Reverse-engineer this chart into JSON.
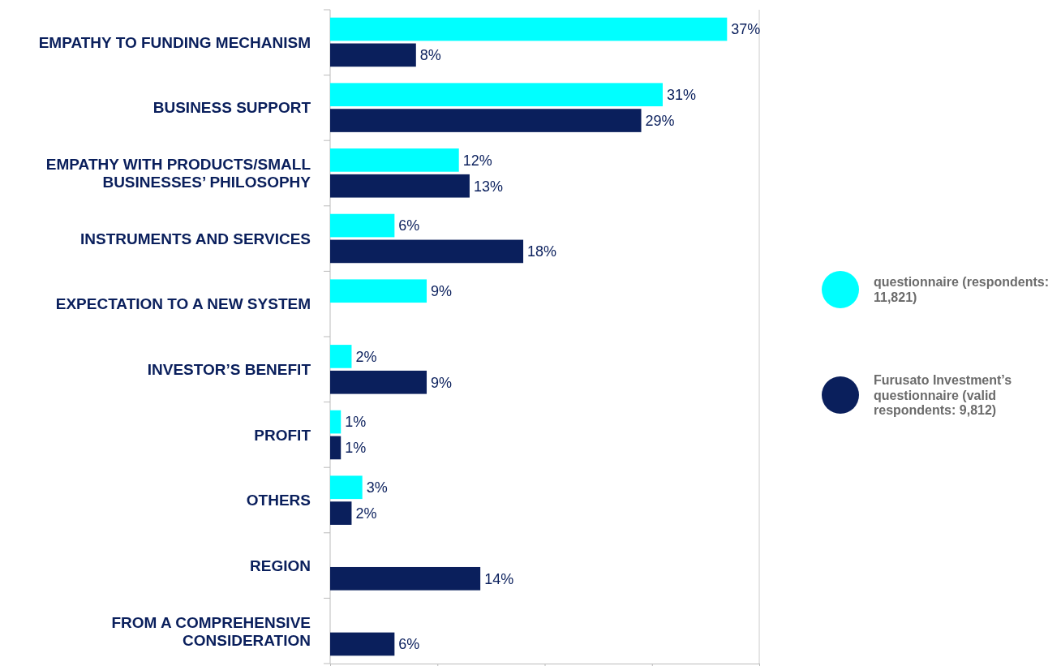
{
  "chart_data": {
    "type": "bar",
    "orientation": "horizontal",
    "categories": [
      "EMPATHY TO FUNDING MECHANISM",
      "BUSINESS SUPPORT",
      "EMPATHY WITH PRODUCTS/SMALL BUSINESSES’ PHILOSOPHY",
      "INSTRUMENTS AND SERVICES",
      "EXPECTATION TO A NEW SYSTEM",
      "INVESTOR’S BENEFIT",
      "PROFIT",
      "OTHERS",
      "REGION",
      "FROM A COMPREHENSIVE CONSIDERATION"
    ],
    "series": [
      {
        "name": "questionnaire (respondents: 11,821)",
        "color": "#00ffff",
        "values": [
          37,
          31,
          12,
          6,
          9,
          2,
          1,
          3,
          null,
          null
        ],
        "value_labels": [
          "37%",
          "31%",
          "12%",
          "6%",
          "9%",
          "2%",
          "1%",
          "3%",
          null,
          null
        ]
      },
      {
        "name": "Furusato Investment’s questionnaire (valid respondents: 9,812)",
        "color": "#0a1f5c",
        "values": [
          8,
          29,
          13,
          18,
          null,
          9,
          1,
          2,
          14,
          6
        ],
        "value_labels": [
          "8%",
          "29%",
          "13%",
          "18%",
          null,
          "9%",
          "1%",
          "2%",
          "14%",
          "6%"
        ]
      }
    ],
    "xlim": [
      0,
      40
    ],
    "xticks": [
      {
        "value": 0,
        "label": null
      },
      {
        "value": 10,
        "label": null
      },
      {
        "value": 20,
        "label": null
      },
      {
        "value": 30,
        "label": null
      },
      {
        "value": 40,
        "label": null
      }
    ],
    "tick_labels": "y",
    "grid": false,
    "legend": "right"
  }
}
